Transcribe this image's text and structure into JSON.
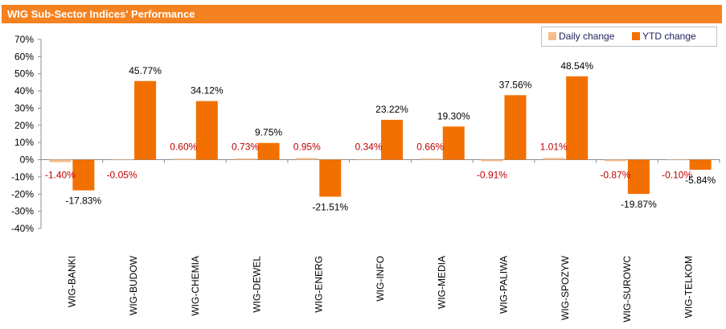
{
  "header": {
    "title": "WIG Sub-Sector Indices' Performance"
  },
  "colors": {
    "title_bar": "#f58220",
    "daily": "#f7be8c",
    "ytd": "#f27000",
    "daily_label": "#c00000"
  },
  "chart_data": {
    "type": "bar",
    "title": "WIG Sub-Sector Indices' Performance",
    "xlabel": "",
    "ylabel": "",
    "ylim": [
      -40,
      70
    ],
    "yticks": [
      70,
      60,
      50,
      40,
      30,
      20,
      10,
      0,
      -10,
      -20,
      -30,
      -40
    ],
    "ytick_labels": [
      "70%",
      "60%",
      "50%",
      "40%",
      "30%",
      "20%",
      "10%",
      "0%",
      "-10%",
      "-20%",
      "-30%",
      "-40%"
    ],
    "grid": false,
    "legend_position": "top-right",
    "categories": [
      "WIG-BANKI",
      "WIG-BUDOW",
      "WIG-CHEMIA",
      "WIG-DEWEL",
      "WIG-ENERG",
      "WIG-INFO",
      "WIG-MEDIA",
      "WIG-PALIWA",
      "WIG-SPOZYW",
      "WIG-SUROWC",
      "WIG-TELKOM"
    ],
    "series": [
      {
        "name": "Daily change",
        "values": [
          -1.4,
          -0.05,
          0.6,
          0.73,
          0.95,
          0.34,
          0.66,
          -0.91,
          1.01,
          -0.87,
          -0.1
        ],
        "labels": [
          "-1.40%",
          "-0.05%",
          "0.60%",
          "0.73%",
          "0.95%",
          "0.34%",
          "0.66%",
          "-0.91%",
          "1.01%",
          "-0.87%",
          "-0.10%"
        ]
      },
      {
        "name": "YTD change",
        "values": [
          -17.83,
          45.77,
          34.12,
          9.75,
          -21.51,
          23.22,
          19.3,
          37.56,
          48.54,
          -19.87,
          -5.84
        ],
        "labels": [
          "-17.83%",
          "45.77%",
          "34.12%",
          "9.75%",
          "-21.51%",
          "23.22%",
          "19.30%",
          "37.56%",
          "48.54%",
          "-19.87%",
          "-5.84%"
        ]
      }
    ]
  }
}
